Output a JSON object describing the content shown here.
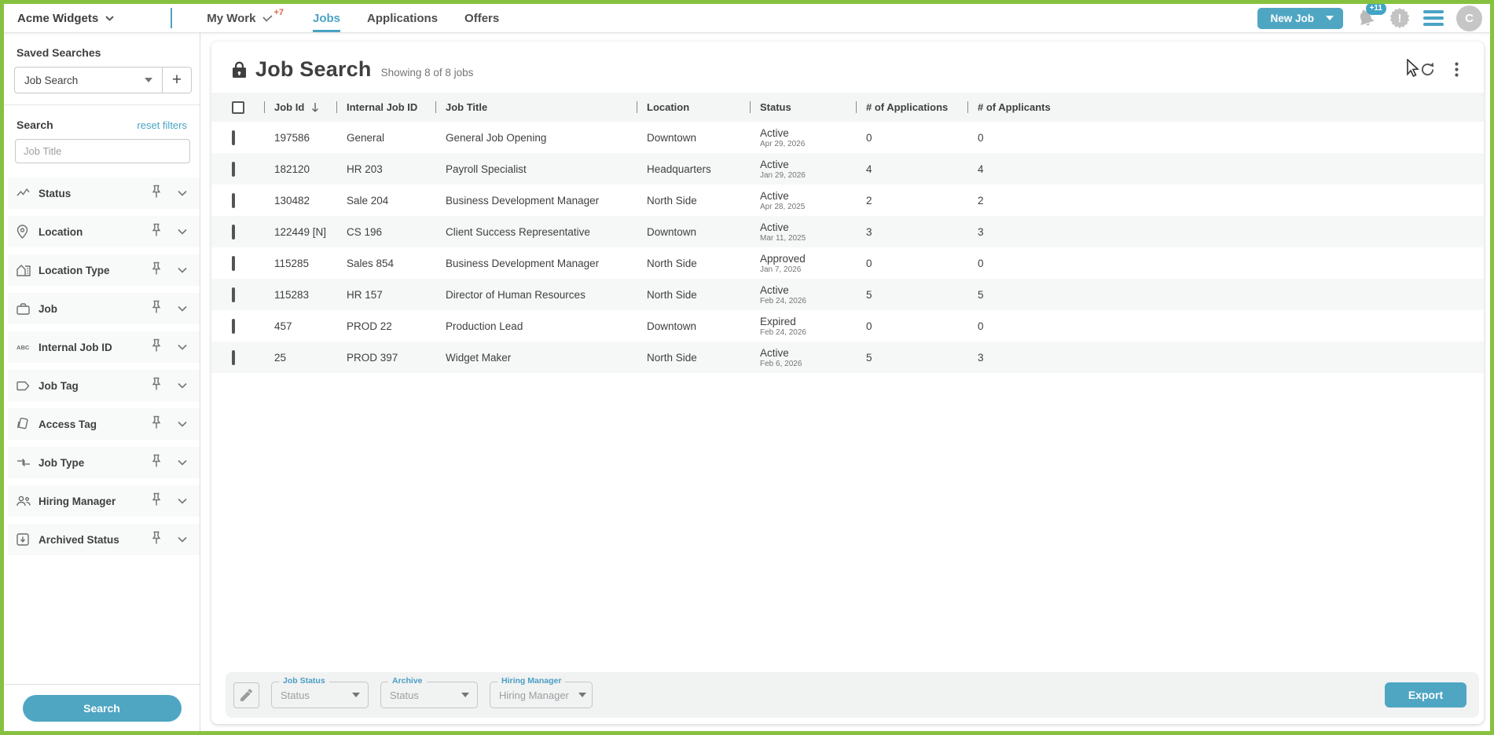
{
  "colors": {
    "accent": "#4aa3c4",
    "button_teal": "#4fa6c3",
    "frame_green": "#86c23f",
    "badge_orange": "#e0664a"
  },
  "topbar": {
    "company": "Acme Widgets",
    "nav": [
      {
        "label": "My Work",
        "badge": "+7",
        "active": false
      },
      {
        "label": "Jobs",
        "active": true
      },
      {
        "label": "Applications",
        "active": false
      },
      {
        "label": "Offers",
        "active": false
      }
    ],
    "new_job": {
      "label": "New Job"
    },
    "notifications_badge": "+11",
    "avatar_initial": "C"
  },
  "sidebar": {
    "saved_searches": {
      "title": "Saved Searches",
      "value": "Job Search",
      "add_label": "+"
    },
    "search": {
      "title": "Search",
      "reset_label": "reset filters",
      "placeholder": "Job Title"
    },
    "filters": [
      {
        "icon": "status-icon",
        "label": "Status"
      },
      {
        "icon": "location-icon",
        "label": "Location"
      },
      {
        "icon": "location-type-icon",
        "label": "Location Type"
      },
      {
        "icon": "job-icon",
        "label": "Job"
      },
      {
        "icon": "internal-job-id-icon",
        "label": "Internal Job ID"
      },
      {
        "icon": "job-tag-icon",
        "label": "Job Tag"
      },
      {
        "icon": "access-tag-icon",
        "label": "Access Tag"
      },
      {
        "icon": "job-type-icon",
        "label": "Job Type"
      },
      {
        "icon": "hiring-manager-icon",
        "label": "Hiring Manager"
      },
      {
        "icon": "archived-status-icon",
        "label": "Archived Status"
      }
    ],
    "search_button_label": "Search"
  },
  "main": {
    "title": "Job Search",
    "subtitle": "Showing 8 of 8 jobs",
    "table": {
      "columns": [
        "Job Id",
        "Internal Job ID",
        "Job Title",
        "Location",
        "Status",
        "# of Applications",
        "# of Applicants"
      ],
      "sort_column": "Job Id",
      "sort_direction": "descending",
      "rows": [
        {
          "job_id": "197586",
          "internal_job_id": "General",
          "job_title": "General Job Opening",
          "location": "Downtown",
          "status": "Active",
          "status_date": "Apr 29, 2026",
          "applications": "0",
          "applicants": "0"
        },
        {
          "job_id": "182120",
          "internal_job_id": "HR 203",
          "job_title": "Payroll Specialist",
          "location": "Headquarters",
          "status": "Active",
          "status_date": "Jan 29, 2026",
          "applications": "4",
          "applicants": "4"
        },
        {
          "job_id": "130482",
          "internal_job_id": "Sale 204",
          "job_title": "Business Development Manager",
          "location": "North Side",
          "status": "Active",
          "status_date": "Apr 28, 2025",
          "applications": "2",
          "applicants": "2"
        },
        {
          "job_id": "122449 [N]",
          "internal_job_id": "CS 196",
          "job_title": "Client Success Representative",
          "location": "Downtown",
          "status": "Active",
          "status_date": "Mar 11, 2025",
          "applications": "3",
          "applicants": "3"
        },
        {
          "job_id": "115285",
          "internal_job_id": "Sales 854",
          "job_title": "Business Development Manager",
          "location": "North Side",
          "status": "Approved",
          "status_date": "Jan 7, 2026",
          "applications": "0",
          "applicants": "0"
        },
        {
          "job_id": "115283",
          "internal_job_id": "HR 157",
          "job_title": "Director of Human Resources",
          "location": "North Side",
          "status": "Active",
          "status_date": "Feb 24, 2026",
          "applications": "5",
          "applicants": "5"
        },
        {
          "job_id": "457",
          "internal_job_id": "PROD 22",
          "job_title": "Production Lead",
          "location": "Downtown",
          "status": "Expired",
          "status_date": "Feb 24, 2026",
          "applications": "0",
          "applicants": "0"
        },
        {
          "job_id": "25",
          "internal_job_id": "PROD 397",
          "job_title": "Widget Maker",
          "location": "North Side",
          "status": "Active",
          "status_date": "Feb 6, 2026",
          "applications": "5",
          "applicants": "3"
        }
      ]
    },
    "footer": {
      "selects": [
        {
          "label": "Job Status",
          "value": "Status"
        },
        {
          "label": "Archive",
          "value": "Status"
        },
        {
          "label": "Hiring Manager",
          "value": "Hiring Manager"
        }
      ],
      "export_label": "Export"
    }
  }
}
